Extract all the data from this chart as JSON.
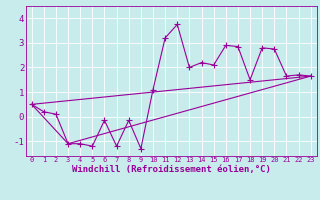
{
  "xlabel": "Windchill (Refroidissement éolien,°C)",
  "background_color": "#c8ecec",
  "grid_color": "#ffffff",
  "line_color": "#990099",
  "xlim": [
    -0.5,
    23.5
  ],
  "ylim": [
    -1.6,
    4.5
  ],
  "xticks": [
    0,
    1,
    2,
    3,
    4,
    5,
    6,
    7,
    8,
    9,
    10,
    11,
    12,
    13,
    14,
    15,
    16,
    17,
    18,
    19,
    20,
    21,
    22,
    23
  ],
  "yticks": [
    -1,
    0,
    1,
    2,
    3,
    4
  ],
  "scatter_x": [
    0,
    1,
    2,
    3,
    4,
    5,
    6,
    7,
    8,
    9,
    10,
    11,
    12,
    13,
    14,
    15,
    16,
    17,
    18,
    19,
    20,
    21,
    22,
    23
  ],
  "scatter_y": [
    0.5,
    0.2,
    0.1,
    -1.1,
    -1.1,
    -1.2,
    -0.15,
    -1.2,
    -0.15,
    -1.3,
    1.1,
    3.2,
    3.75,
    2.0,
    2.2,
    2.1,
    2.9,
    2.85,
    1.5,
    2.8,
    2.75,
    1.65,
    1.7,
    1.65
  ],
  "line1_x": [
    0,
    23
  ],
  "line1_y": [
    0.5,
    1.65
  ],
  "line2_x": [
    0,
    3,
    23
  ],
  "line2_y": [
    0.5,
    -1.1,
    1.65
  ],
  "linewidth": 0.8,
  "font_size_xlabel": 6.5,
  "font_size_yticks": 6.5,
  "font_size_xticks": 5.0
}
